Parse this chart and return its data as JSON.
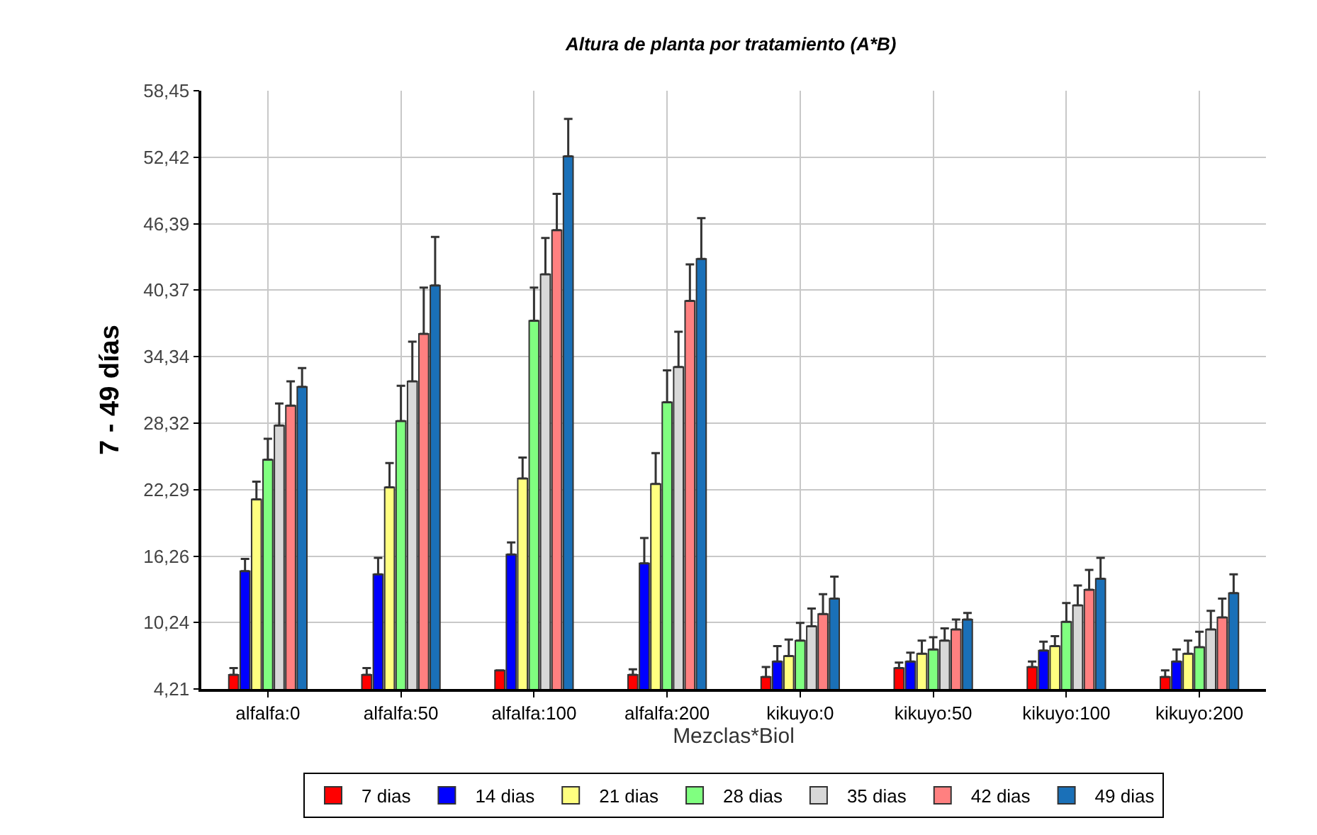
{
  "chart_data": {
    "type": "bar",
    "title": "Altura de planta por tratamiento (A*B)",
    "xlabel": "Mezclas*Biol",
    "ylabel": "7 - 49 días",
    "categories": [
      "alfalfa:0",
      "alfalfa:50",
      "alfalfa:100",
      "alfalfa:200",
      "kikuyo:0",
      "kikuyo:50",
      "kikuyo:100",
      "kikuyo:200"
    ],
    "series": [
      {
        "name": "7 dias",
        "color": "#ff0000",
        "values": [
          5.5,
          5.5,
          5.9,
          5.5,
          5.3,
          6.1,
          6.2,
          5.3
        ],
        "errors": [
          [
            5.5,
            6.1
          ],
          [
            5.5,
            6.1
          ],
          null,
          [
            5.5,
            6.0
          ],
          [
            5.3,
            6.2
          ],
          [
            6.1,
            6.6
          ],
          [
            6.2,
            6.7
          ],
          [
            5.3,
            5.9
          ]
        ]
      },
      {
        "name": "14 dias",
        "color": "#0000ff",
        "values": [
          14.9,
          14.6,
          16.4,
          15.6,
          6.7,
          6.7,
          7.7,
          6.7
        ],
        "errors": [
          [
            14.9,
            16.0
          ],
          [
            14.6,
            16.1
          ],
          [
            16.4,
            17.5
          ],
          [
            15.6,
            17.9
          ],
          [
            6.7,
            8.1
          ],
          [
            6.7,
            7.5
          ],
          [
            7.7,
            8.5
          ],
          [
            6.7,
            7.8
          ]
        ]
      },
      {
        "name": "21 dias",
        "color": "#ffff80",
        "values": [
          21.4,
          22.5,
          23.3,
          22.8,
          7.2,
          7.4,
          8.1,
          7.4
        ],
        "errors": [
          [
            21.4,
            23.0
          ],
          [
            22.5,
            24.7
          ],
          [
            23.3,
            25.2
          ],
          [
            22.8,
            25.6
          ],
          [
            7.2,
            8.7
          ],
          [
            7.4,
            8.6
          ],
          [
            8.1,
            9.0
          ],
          [
            7.4,
            8.6
          ]
        ]
      },
      {
        "name": "28 dias",
        "color": "#80ff80",
        "values": [
          25.0,
          28.5,
          37.6,
          30.2,
          8.6,
          7.8,
          10.3,
          8.0
        ],
        "errors": [
          [
            25.0,
            26.9
          ],
          [
            28.5,
            31.7
          ],
          [
            37.6,
            40.6
          ],
          [
            30.2,
            33.1
          ],
          [
            8.6,
            10.2
          ],
          [
            7.8,
            8.9
          ],
          [
            10.3,
            12.0
          ],
          [
            8.0,
            9.4
          ]
        ]
      },
      {
        "name": "35 dias",
        "color": "#d8d8d8",
        "values": [
          28.1,
          32.1,
          41.8,
          33.4,
          9.9,
          8.6,
          11.8,
          9.6
        ],
        "errors": [
          [
            28.1,
            30.1
          ],
          [
            32.1,
            35.7
          ],
          [
            41.8,
            45.1
          ],
          [
            33.4,
            36.6
          ],
          [
            9.9,
            11.5
          ],
          [
            8.6,
            9.7
          ],
          [
            11.8,
            13.6
          ],
          [
            9.6,
            11.3
          ]
        ]
      },
      {
        "name": "42 dias",
        "color": "#ff8080",
        "values": [
          29.9,
          36.4,
          45.8,
          39.4,
          11.0,
          9.6,
          13.2,
          10.7
        ],
        "errors": [
          [
            29.9,
            32.1
          ],
          [
            36.4,
            40.6
          ],
          [
            45.8,
            49.1
          ],
          [
            39.4,
            42.7
          ],
          [
            11.0,
            12.8
          ],
          [
            9.6,
            10.5
          ],
          [
            13.2,
            15.0
          ],
          [
            10.7,
            12.4
          ]
        ]
      },
      {
        "name": "49 dias",
        "color": "#1a70b8",
        "values": [
          31.6,
          40.8,
          52.5,
          43.2,
          12.4,
          10.5,
          14.2,
          12.9
        ],
        "errors": [
          [
            31.6,
            33.3
          ],
          [
            40.8,
            45.2
          ],
          [
            52.5,
            55.9
          ],
          [
            43.2,
            46.9
          ],
          [
            12.4,
            14.4
          ],
          [
            10.5,
            11.1
          ],
          [
            14.2,
            16.1
          ],
          [
            12.9,
            14.6
          ]
        ]
      }
    ],
    "ylim": [
      4.21,
      58.45
    ],
    "yticks": [
      {
        "value": 4.21,
        "label": "4,21"
      },
      {
        "value": 10.24,
        "label": "10,24"
      },
      {
        "value": 16.26,
        "label": "16,26"
      },
      {
        "value": 22.29,
        "label": "22,29"
      },
      {
        "value": 28.32,
        "label": "28,32"
      },
      {
        "value": 34.34,
        "label": "34,34"
      },
      {
        "value": 40.37,
        "label": "40,37"
      },
      {
        "value": 46.39,
        "label": "46,39"
      },
      {
        "value": 52.42,
        "label": "52,42"
      },
      {
        "value": 58.45,
        "label": "58,45"
      }
    ],
    "grid": true,
    "legend": "bottom"
  }
}
